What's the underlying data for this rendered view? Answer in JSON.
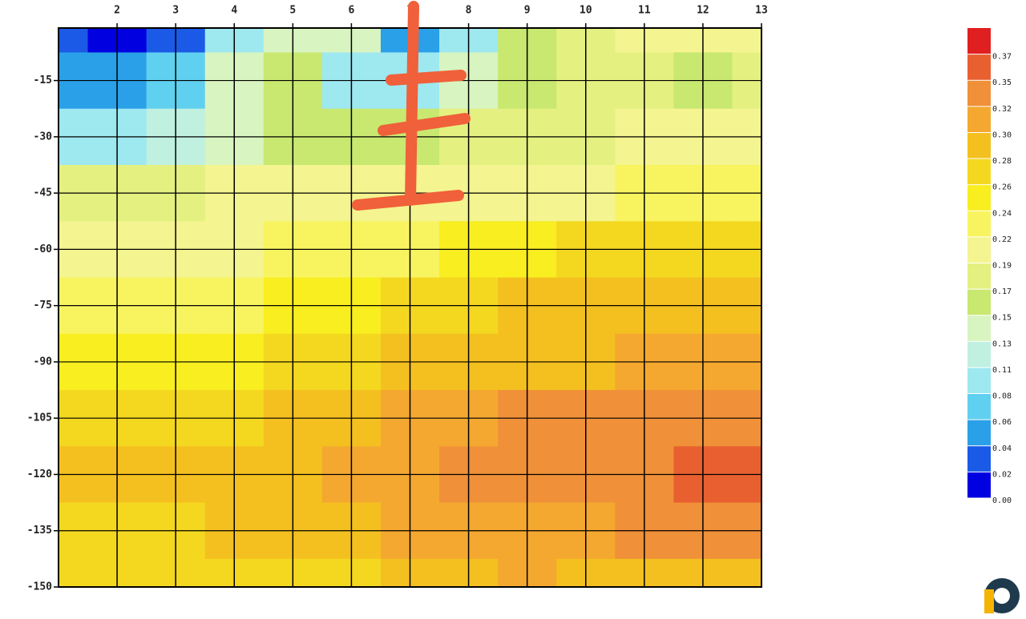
{
  "chart_data": {
    "type": "heatmap",
    "x": [
      1,
      2,
      3,
      4,
      5,
      6,
      7,
      8,
      9,
      10,
      11,
      12,
      13
    ],
    "y": [
      0,
      -15,
      -30,
      -45,
      -60,
      -75,
      -90,
      -105,
      -120,
      -135,
      -150
    ],
    "z": [
      [
        0.02,
        0.01,
        0.02,
        0.1,
        0.14,
        0.13,
        0.05,
        0.09,
        0.16,
        0.18,
        0.19,
        0.19,
        0.19
      ],
      [
        0.05,
        0.04,
        0.06,
        0.13,
        0.15,
        0.1,
        0.09,
        0.14,
        0.16,
        0.17,
        0.18,
        0.16,
        0.17
      ],
      [
        0.1,
        0.09,
        0.11,
        0.14,
        0.15,
        0.15,
        0.16,
        0.17,
        0.18,
        0.18,
        0.19,
        0.19,
        0.19
      ],
      [
        0.18,
        0.18,
        0.18,
        0.19,
        0.19,
        0.19,
        0.2,
        0.21,
        0.21,
        0.21,
        0.22,
        0.22,
        0.22
      ],
      [
        0.2,
        0.2,
        0.21,
        0.21,
        0.22,
        0.22,
        0.23,
        0.24,
        0.25,
        0.26,
        0.26,
        0.26,
        0.27
      ],
      [
        0.23,
        0.23,
        0.23,
        0.23,
        0.24,
        0.25,
        0.26,
        0.27,
        0.28,
        0.28,
        0.28,
        0.28,
        0.28
      ],
      [
        0.25,
        0.25,
        0.25,
        0.25,
        0.26,
        0.27,
        0.28,
        0.29,
        0.29,
        0.29,
        0.3,
        0.3,
        0.31
      ],
      [
        0.27,
        0.27,
        0.27,
        0.27,
        0.28,
        0.29,
        0.3,
        0.31,
        0.32,
        0.32,
        0.33,
        0.33,
        0.34
      ],
      [
        0.28,
        0.28,
        0.28,
        0.28,
        0.29,
        0.3,
        0.31,
        0.32,
        0.33,
        0.34,
        0.34,
        0.35,
        0.35
      ],
      [
        0.27,
        0.27,
        0.27,
        0.28,
        0.28,
        0.29,
        0.3,
        0.3,
        0.31,
        0.31,
        0.32,
        0.32,
        0.32
      ],
      [
        0.27,
        0.26,
        0.27,
        0.27,
        0.26,
        0.27,
        0.28,
        0.29,
        0.3,
        0.29,
        0.29,
        0.28,
        0.28
      ]
    ],
    "xlim": [
      1,
      13
    ],
    "ylim": [
      -150,
      -1
    ],
    "xticks": [
      2,
      3,
      4,
      5,
      6,
      7,
      8,
      9,
      10,
      11,
      12,
      13
    ],
    "yticks": [
      -15,
      -30,
      -45,
      -60,
      -75,
      -90,
      -105,
      -120,
      -135,
      -150
    ],
    "grid": true,
    "colorbar": {
      "ticks": [
        {
          "value": 0,
          "label": "0.00"
        },
        {
          "value": 0.02,
          "label": "0.02"
        },
        {
          "value": 0.04,
          "label": "0.04"
        },
        {
          "value": 0.06,
          "label": "0.06"
        },
        {
          "value": 0.08,
          "label": "0.08"
        },
        {
          "value": 0.11,
          "label": "0.11"
        },
        {
          "value": 0.13,
          "label": "0.13"
        },
        {
          "value": 0.15,
          "label": "0.15"
        },
        {
          "value": 0.17,
          "label": "0.17"
        },
        {
          "value": 0.19,
          "label": "0.19"
        },
        {
          "value": 0.22,
          "label": "0.22"
        },
        {
          "value": 0.24,
          "label": "0.24"
        },
        {
          "value": 0.26,
          "label": "0.26"
        },
        {
          "value": 0.28,
          "label": "0.28"
        },
        {
          "value": 0.3,
          "label": "0.30"
        },
        {
          "value": 0.32,
          "label": "0.32"
        },
        {
          "value": 0.35,
          "label": "0.35"
        },
        {
          "value": 0.37,
          "label": "0.37"
        }
      ],
      "colors": [
        "#0000e0",
        "#1a5ae6",
        "#2aa0e8",
        "#60d0f0",
        "#9ee8f0",
        "#c0f0e0",
        "#d8f4c0",
        "#c8e870",
        "#e4f080",
        "#f4f490",
        "#f8f460",
        "#f8ee20",
        "#f4d820",
        "#f4c020",
        "#f4a830",
        "#f09038",
        "#e86030",
        "#e02020"
      ]
    }
  }
}
